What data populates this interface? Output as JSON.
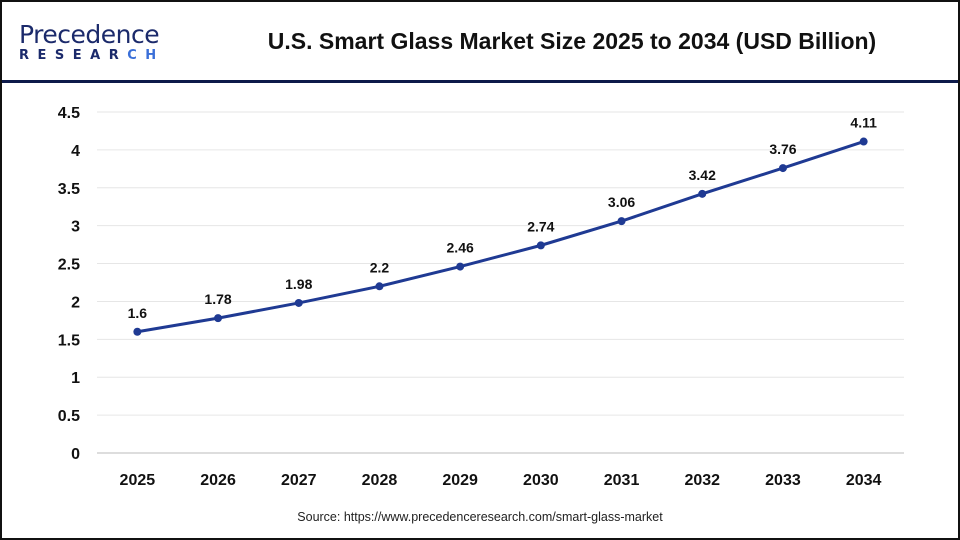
{
  "logo": {
    "line1_a": "Precedence",
    "line2_a": "RESEAR",
    "line2_b": "CH"
  },
  "title": "U.S. Smart Glass Market Size 2025 to 2034 (USD Billion)",
  "source": "Source: https://www.precedenceresearch.com/smart-glass-market",
  "colors": {
    "line": "#1f3a93",
    "header_rule": "#0d1a4a"
  },
  "chart_data": {
    "type": "line",
    "title": "U.S. Smart Glass Market Size 2025 to 2034 (USD Billion)",
    "categories": [
      "2025",
      "2026",
      "2027",
      "2028",
      "2029",
      "2030",
      "2031",
      "2032",
      "2033",
      "2034"
    ],
    "values": [
      1.6,
      1.78,
      1.98,
      2.2,
      2.46,
      2.74,
      3.06,
      3.42,
      3.76,
      4.11
    ],
    "data_labels": [
      "1.6",
      "1.78",
      "1.98",
      "2.2",
      "2.46",
      "2.74",
      "3.06",
      "3.42",
      "3.76",
      "4.11"
    ],
    "ylim": [
      0,
      4.5
    ],
    "yticks": [
      "0",
      "0.5",
      "1",
      "1.5",
      "2",
      "2.5",
      "3",
      "3.5",
      "4",
      "4.5"
    ],
    "grid": true,
    "legend": "none"
  }
}
